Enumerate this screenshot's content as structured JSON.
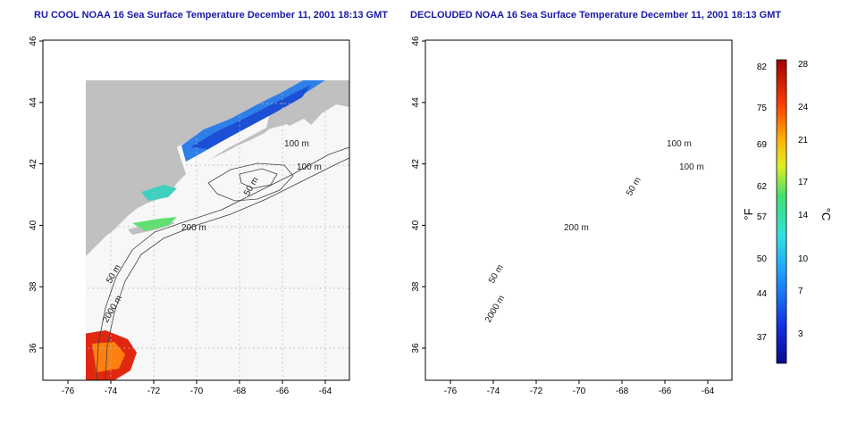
{
  "maps": [
    {
      "title": "RU COOL NOAA 16 Sea Surface Temperature December 11, 2001 18:13 GMT",
      "x_ticks": [
        "-76",
        "-74",
        "-72",
        "-70",
        "-68",
        "-66",
        "-64"
      ],
      "y_ticks": [
        "36",
        "38",
        "40",
        "42",
        "44",
        "46"
      ],
      "contour_labels": [
        "100 m",
        "100 m",
        "50 m",
        "200 m",
        "50 m",
        "2000 m"
      ]
    },
    {
      "title": "DECLOUDED NOAA 16 Sea Surface Temperature December 11, 2001 18:13 GMT",
      "x_ticks": [
        "-76",
        "-74",
        "-72",
        "-70",
        "-68",
        "-66",
        "-64"
      ],
      "y_ticks": [
        "36",
        "38",
        "40",
        "42",
        "44",
        "46"
      ],
      "contour_labels": [
        "100 m",
        "100 m",
        "50 m",
        "200 m",
        "50 m",
        "2000 m"
      ]
    }
  ],
  "colorbar": {
    "fahrenheit_label": "°F",
    "celsius_label": "°C",
    "fahrenheit_ticks": [
      "82",
      "75",
      "69",
      "62",
      "57",
      "50",
      "44",
      "37"
    ],
    "celsius_ticks": [
      "28",
      "24",
      "21",
      "17",
      "14",
      "10",
      "7",
      "3"
    ]
  },
  "colors": {
    "land": "#c0c0c0",
    "water_nodata": "#f7f7f7",
    "cold": "#1a4fd6",
    "warm": "#e02810",
    "title": "#1a1aa6"
  }
}
